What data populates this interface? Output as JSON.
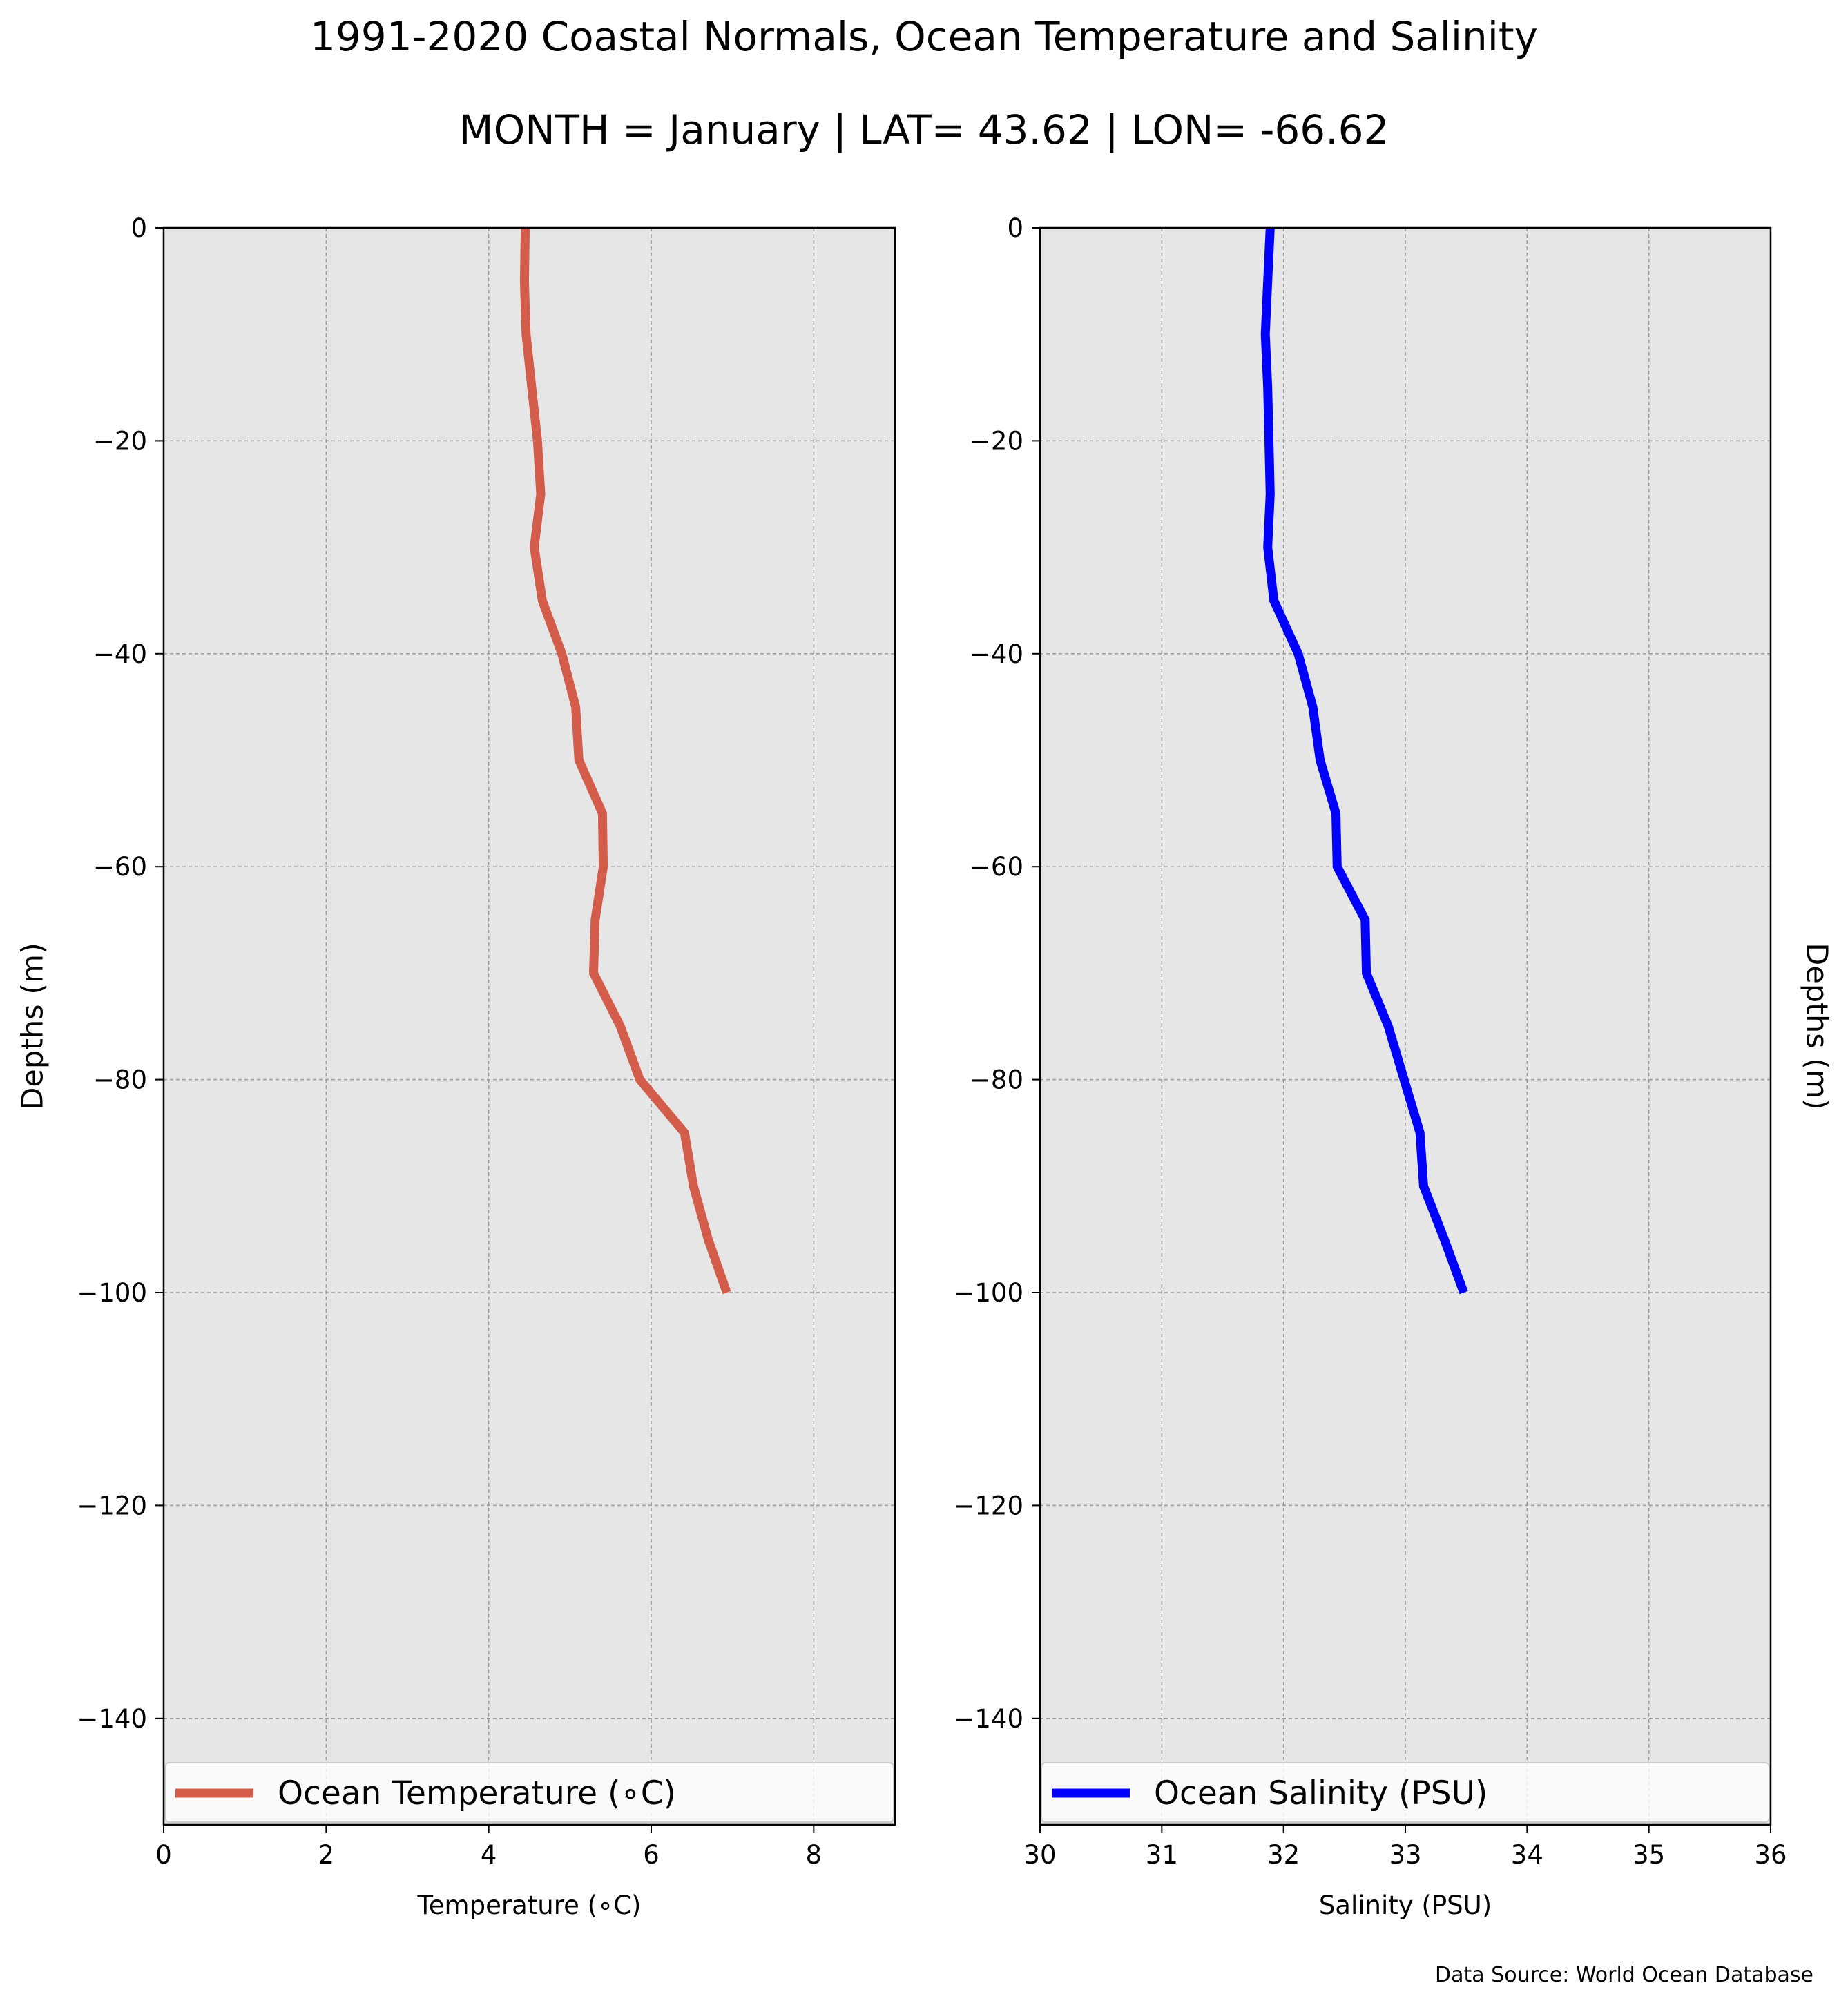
{
  "figure": {
    "title": "1991-2020 Coastal Normals, Ocean Temperature and Salinity",
    "subtitle": "MONTH = January | LAT= 43.62 | LON= -66.62",
    "source": "Data Source: World Ocean Database",
    "colors": {
      "background": "#ffffff",
      "plot_bg": "#e6e6e6",
      "grid": "#9a9a9a",
      "temperature": "#d35d4a",
      "salinity": "#0000ff"
    }
  },
  "chart_data": [
    {
      "type": "line",
      "xlabel": "Temperature ($^\\circ$C)",
      "xlabel_display": "Temperature (∘C)",
      "ylabel": "Depths (m)",
      "xlim": [
        0,
        9
      ],
      "ylim": [
        -150,
        0
      ],
      "xticks": [
        "0",
        "2",
        "4",
        "6",
        "8"
      ],
      "xtick_values": [
        0,
        2,
        4,
        6,
        8
      ],
      "yticks": [
        "0",
        "−20",
        "−40",
        "−60",
        "−80",
        "−100",
        "−120",
        "−140"
      ],
      "ytick_values": [
        0,
        -20,
        -40,
        -60,
        -80,
        -100,
        -120,
        -140
      ],
      "grid": true,
      "legend_position": "bottom",
      "series": [
        {
          "name": "Ocean Temperature (∘C)",
          "color": "#d35d4a",
          "x": [
            4.45,
            4.44,
            4.46,
            4.53,
            4.6,
            4.64,
            4.56,
            4.66,
            4.9,
            5.07,
            5.11,
            5.4,
            5.41,
            5.31,
            5.29,
            5.62,
            5.86,
            6.41,
            6.52,
            6.7,
            6.93
          ],
          "y": [
            0,
            -5,
            -10,
            -15,
            -20,
            -25,
            -30,
            -35,
            -40,
            -45,
            -50,
            -55,
            -60,
            -65,
            -70,
            -75,
            -80,
            -85,
            -90,
            -95,
            -100
          ]
        }
      ]
    },
    {
      "type": "line",
      "xlabel": "Salinity (PSU)",
      "ylabel": "Depths (m)",
      "xlim": [
        30,
        36
      ],
      "ylim": [
        -150,
        0
      ],
      "xticks": [
        "30",
        "31",
        "32",
        "33",
        "34",
        "35",
        "36"
      ],
      "xtick_values": [
        30,
        31,
        32,
        33,
        34,
        35,
        36
      ],
      "yticks": [
        "0",
        "−20",
        "−40",
        "−60",
        "−80",
        "−100",
        "−120",
        "−140"
      ],
      "ytick_values": [
        0,
        -20,
        -40,
        -60,
        -80,
        -100,
        -120,
        -140
      ],
      "grid": true,
      "legend_position": "bottom",
      "series": [
        {
          "name": "Ocean Salinity (PSU)",
          "color": "#0000ff",
          "x": [
            31.89,
            31.87,
            31.85,
            31.87,
            31.88,
            31.89,
            31.87,
            31.92,
            32.12,
            32.24,
            32.3,
            32.43,
            32.44,
            32.67,
            32.68,
            32.86,
            32.99,
            33.12,
            33.15,
            33.32,
            33.48
          ],
          "y": [
            0,
            -5,
            -10,
            -15,
            -20,
            -25,
            -30,
            -35,
            -40,
            -45,
            -50,
            -55,
            -60,
            -65,
            -70,
            -75,
            -80,
            -85,
            -90,
            -95,
            -100
          ]
        }
      ]
    }
  ]
}
